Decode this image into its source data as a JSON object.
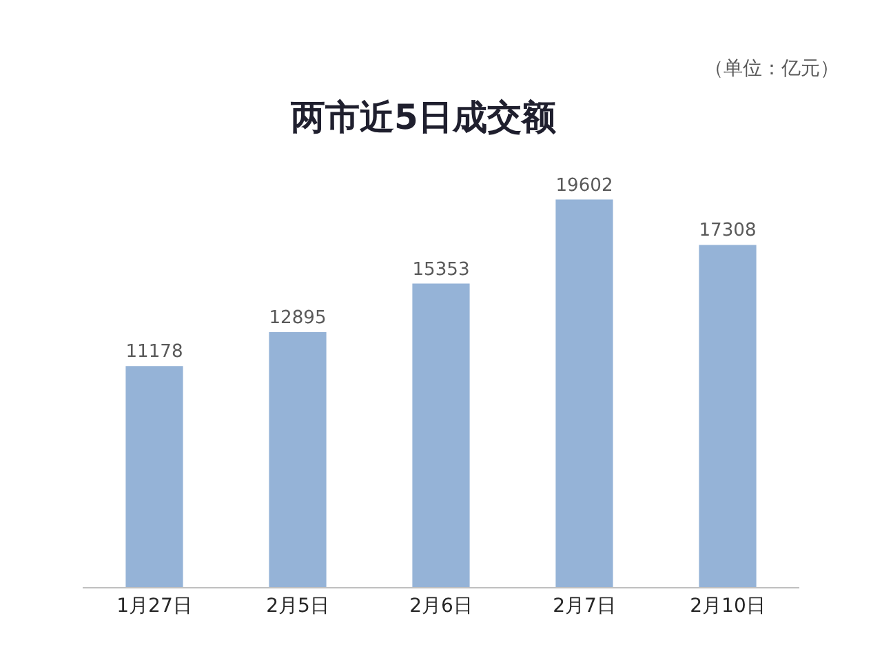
{
  "chart_data": {
    "type": "bar",
    "title": "两市近5日成交额",
    "annotations": [
      "（单位：亿元）"
    ],
    "categories": [
      "1月27日",
      "2月5日",
      "2月6日",
      "2月7日",
      "2月10日"
    ],
    "values": [
      11178,
      12895,
      15353,
      19602,
      17308
    ],
    "color": "#95b3d7",
    "data_labels": true
  }
}
